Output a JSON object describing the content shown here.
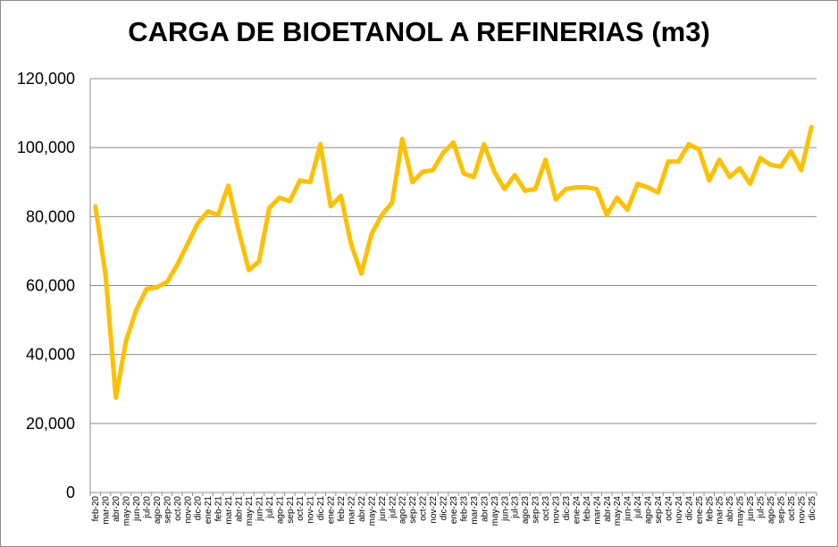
{
  "chart_data": {
    "type": "line",
    "title": "CARGA DE BIOETANOL A REFINERIAS (m3)",
    "xlabel": "",
    "ylabel": "",
    "ylim": [
      0,
      120000
    ],
    "yticks": [
      "0",
      "20,000",
      "40,000",
      "60,000",
      "80,000",
      "100,000",
      "120,000"
    ],
    "grid": "horizontal",
    "legend": "none",
    "line_color": "#FFC000",
    "categories": [
      "feb-20",
      "mar-20",
      "abr-20",
      "may-20",
      "jun-20",
      "jul-20",
      "ago-20",
      "sep-20",
      "oct-20",
      "nov-20",
      "dic-20",
      "ene-21",
      "feb-21",
      "mar-21",
      "abr-21",
      "may-21",
      "jun-21",
      "jul-21",
      "ago-21",
      "sep-21",
      "oct-21",
      "nov-21",
      "dic-21",
      "ene-22",
      "feb-22",
      "mar-22",
      "abr-22",
      "may-22",
      "jun-22",
      "jul-22",
      "ago-22",
      "sep-22",
      "oct-22",
      "nov-22",
      "dic-22",
      "ene-23",
      "feb-23",
      "mar-23",
      "abr-23",
      "may-23",
      "jun-23",
      "jul-23",
      "ago-23",
      "sep-23",
      "oct-23",
      "nov-23",
      "dic-23",
      "ene-24",
      "feb-24",
      "mar-24",
      "abr-24",
      "may-24",
      "jun-24",
      "jul-24",
      "ago-24",
      "sep-24",
      "oct-24",
      "nov-24",
      "dic-24",
      "ene-25",
      "feb-25",
      "mar-25",
      "abr-25",
      "may-25",
      "jun-25",
      "jul-25",
      "ago-25",
      "sep-25",
      "oct-25",
      "nov-25",
      "dic-25"
    ],
    "series": [
      {
        "values": [
          83000,
          63000,
          27500,
          44000,
          53000,
          59000,
          59500,
          61000,
          66000,
          72000,
          78000,
          81500,
          80500,
          89000,
          76000,
          64500,
          67000,
          82500,
          85500,
          84500,
          90500,
          90000,
          101000,
          83000,
          86000,
          72000,
          63500,
          75000,
          80500,
          84000,
          102500,
          90000,
          93000,
          93500,
          98500,
          101500,
          92500,
          91500,
          101000,
          93000,
          88000,
          92000,
          87500,
          88000,
          96500,
          85000,
          88000,
          88500,
          88500,
          88000,
          80500,
          85500,
          82000,
          89500,
          88500,
          87000,
          96000,
          96000,
          101000,
          99500,
          90500,
          96500,
          91500,
          94000,
          89500,
          97000,
          95000,
          94500,
          99000,
          93500,
          106000
        ]
      }
    ]
  }
}
